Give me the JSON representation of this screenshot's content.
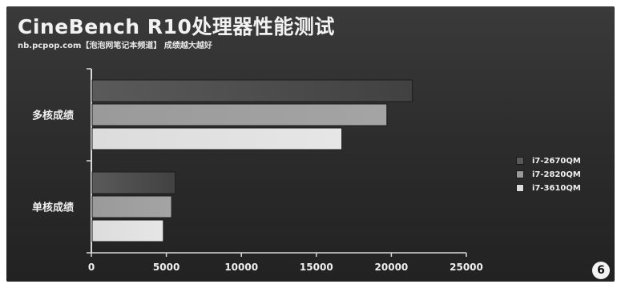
{
  "header": {
    "title": "CineBench R10处理器性能测试",
    "subtitle": "nb.pcpop.com【泡泡网笔记本频道】 成绩越大越好"
  },
  "badge": "6",
  "colors": {
    "background": "#2e2e2e",
    "series": [
      "#5a5a5a",
      "#9a9a9a",
      "#dcdcdc"
    ]
  },
  "chart_data": {
    "type": "bar",
    "orientation": "horizontal",
    "categories": [
      "多核成绩",
      "单核成绩"
    ],
    "series": [
      {
        "name": "i7-2670QM",
        "values": [
          21400,
          5600
        ]
      },
      {
        "name": "i7-2820QM",
        "values": [
          19700,
          5350
        ]
      },
      {
        "name": "i7-3610QM",
        "values": [
          16700,
          4800
        ]
      }
    ],
    "xlim": [
      0,
      25000
    ],
    "xticks": [
      "0",
      "5000",
      "10000",
      "15000",
      "20000",
      "25000"
    ],
    "legend_position": "right",
    "grid": false
  }
}
